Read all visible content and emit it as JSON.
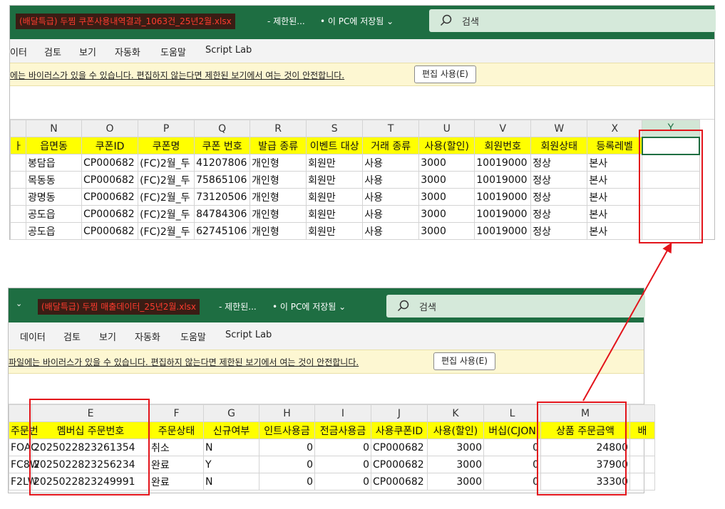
{
  "colors": {
    "title_bg": "#1e6e42",
    "filename_bg": "#3a1d14",
    "filename_fg": "#ff3b2e",
    "highlight_red": "#e3141b",
    "header_yellow": "#ffff00"
  },
  "window1": {
    "filename": "(배달특급) 두찜 쿠폰사용내역결과_1063건_25년2월.xlsx",
    "restricted": "- 제한된...",
    "saved": "• 이 PC에 저장됨 ⌄",
    "search_icon": "search-icon",
    "search_placeholder": "검색",
    "menu": [
      "이터",
      "검토",
      "보기",
      "자동화",
      "도움말",
      "Script Lab"
    ],
    "warning": "에는 바이러스가 있을 수 있습니다. 편집하지 않는다면 제한된 보기에서 여는 것이 안전합니다.",
    "enable_editing": "편집 사용(E)",
    "col_letters": [
      "",
      "N",
      "O",
      "P",
      "Q",
      "R",
      "S",
      "T",
      "U",
      "V",
      "W",
      "X",
      "Y"
    ],
    "headers": [
      "ㅏ",
      "읍면동",
      "쿠폰ID",
      "쿠폰명",
      "쿠폰 번호",
      "발급 종류",
      "이벤트 대상",
      "거래 종류",
      "사용(할인)",
      "회원번호",
      "회원상태",
      "등록레벨",
      ""
    ],
    "rows": [
      [
        "",
        "봉담읍",
        "CP000682",
        "(FC)2월_두",
        "41207806",
        "개인형",
        "회원만",
        "사용",
        "3000",
        "10019000",
        "정상",
        "본사",
        ""
      ],
      [
        "",
        "목동동",
        "CP000682",
        "(FC)2월_두",
        "75865106",
        "개인형",
        "회원만",
        "사용",
        "3000",
        "10019000",
        "정상",
        "본사",
        ""
      ],
      [
        "",
        "광명동",
        "CP000682",
        "(FC)2월_두",
        "73120506",
        "개인형",
        "회원만",
        "사용",
        "3000",
        "10019000",
        "정상",
        "본사",
        ""
      ],
      [
        "",
        "공도읍",
        "CP000682",
        "(FC)2월_두",
        "84784306",
        "개인형",
        "회원만",
        "사용",
        "3000",
        "10019000",
        "정상",
        "본사",
        ""
      ],
      [
        "",
        "공도읍",
        "CP000682",
        "(FC)2월_두",
        "62745106",
        "개인형",
        "회원만",
        "사용",
        "3000",
        "10019000",
        "정상",
        "본사",
        ""
      ]
    ]
  },
  "window2": {
    "qa_arrow": "⌄",
    "filename": "(배달특급) 두찜 매출데이터_25년2월.xlsx",
    "restricted": "- 제한된...",
    "saved": "• 이 PC에 저장됨 ⌄",
    "search_icon": "search-icon",
    "search_placeholder": "검색",
    "menu": [
      "데이터",
      "검토",
      "보기",
      "자동화",
      "도움말",
      "Script Lab"
    ],
    "warning": "파일에는 바이러스가 있을 수 있습니다. 편집하지 않는다면 제한된 보기에서 여는 것이 안전합니다.",
    "enable_editing": "편집 사용(E)",
    "col_letters": [
      "",
      "E",
      "F",
      "G",
      "H",
      "I",
      "J",
      "K",
      "L",
      "M",
      ""
    ],
    "headers": [
      "주문번",
      "멤버십 주문번호",
      "주문상태",
      "신규여부",
      "인트사용금",
      "전금사용금",
      "사용쿠폰ID",
      "사용(할인)",
      "버십(CJON",
      "상품 주문금액",
      "배"
    ],
    "rows": [
      [
        "FOAC",
        "2025022823261354",
        "취소",
        "N",
        "0",
        "0",
        "CP000682",
        "3000",
        "0",
        "24800",
        ""
      ],
      [
        "FC8W",
        "2025022823256234",
        "완료",
        "Y",
        "0",
        "0",
        "CP000682",
        "3000",
        "0",
        "37900",
        ""
      ],
      [
        "F2LW",
        "2025022823249991",
        "완료",
        "N",
        "0",
        "0",
        "CP000682",
        "3000",
        "0",
        "33300",
        ""
      ]
    ]
  }
}
